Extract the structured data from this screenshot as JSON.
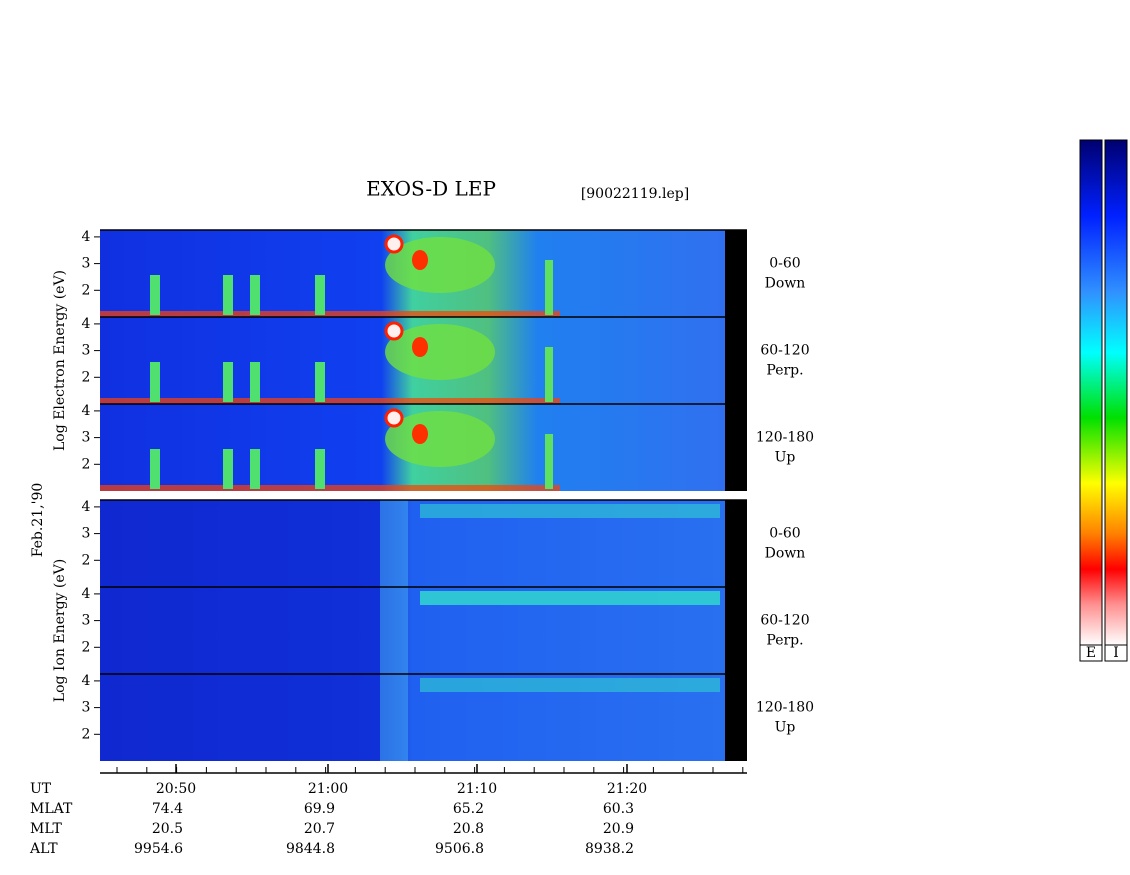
{
  "title": "EXOS-D LEP",
  "file": "[90022119.lep]",
  "date": "Feb.21,'90",
  "yticks": [
    "2",
    "3",
    "4"
  ],
  "species": [
    {
      "label": "Log Electron Energy (eV)",
      "panels": [
        {
          "range": "0-60",
          "direction": "Down"
        },
        {
          "range": "60-120",
          "direction": "Perp."
        },
        {
          "range": "120-180",
          "direction": "Up"
        }
      ]
    },
    {
      "label": "Log Ion Energy (eV)",
      "panels": [
        {
          "range": "0-60",
          "direction": "Down"
        },
        {
          "range": "60-120",
          "direction": "Perp."
        },
        {
          "range": "120-180",
          "direction": "Up"
        }
      ]
    }
  ],
  "time_axis": {
    "rows": [
      {
        "name": "UT",
        "values": [
          "20:50",
          "21:00",
          "21:10",
          "21:20"
        ]
      },
      {
        "name": "MLAT",
        "values": [
          "74.4",
          "69.9",
          "65.2",
          "60.3"
        ]
      },
      {
        "name": "MLT",
        "values": [
          "20.5",
          "20.7",
          "20.8",
          "20.9"
        ]
      },
      {
        "name": "ALT",
        "values": [
          "9954.6",
          "9844.8",
          "9506.8",
          "8938.2"
        ]
      }
    ]
  },
  "colorbars": [
    "E",
    "I"
  ]
}
